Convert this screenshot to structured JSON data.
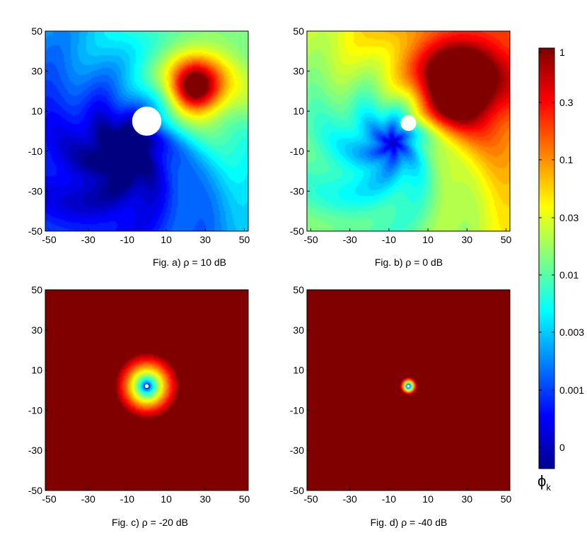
{
  "chart_data": [
    {
      "type": "heatmap",
      "caption": "Fig. a) ρ = 10 dB",
      "xticks": [
        "-50",
        "-30",
        "-10",
        "10",
        "30",
        "50"
      ],
      "yticks": [
        "50",
        "30",
        "10",
        "-10",
        "-30",
        "-50"
      ],
      "xlim": [
        -52,
        52
      ],
      "ylim": [
        -50,
        50
      ],
      "field": {
        "low_center": [
          -10,
          -10
        ],
        "high_center": [
          25,
          22
        ],
        "high_radius": 12,
        "offset": -0.22,
        "gain": 1.05,
        "ring": 6
      },
      "hole": {
        "x": 0,
        "y": 5,
        "r": 7.5
      }
    },
    {
      "type": "heatmap",
      "caption": "Fig. b)  ρ = 0 dB",
      "xticks": [
        "-50",
        "-30",
        "-10",
        "10",
        "30",
        "50"
      ],
      "yticks": [
        "50",
        "30",
        "10",
        "-10",
        "-30",
        "-50"
      ],
      "xlim": [
        -52,
        52
      ],
      "ylim": [
        -50,
        50
      ],
      "field": {
        "low_center": [
          -8,
          -6
        ],
        "high_center": [
          25,
          22
        ],
        "high_radius": 16,
        "offset": 0.05,
        "gain": 1.15,
        "ring": 6
      },
      "hole": {
        "x": 0,
        "y": 4,
        "r": 4
      }
    },
    {
      "type": "heatmap",
      "caption": "Fig. c) ρ = -20 dB",
      "xticks": [
        "-50",
        "-30",
        "-10",
        "10",
        "30",
        "50"
      ],
      "yticks": [
        "50",
        "30",
        "10",
        "-10",
        "-30",
        "-50"
      ],
      "xlim": [
        -52,
        52
      ],
      "ylim": [
        -50,
        50
      ],
      "field": {
        "mode": "radial",
        "center": [
          0,
          2
        ],
        "dip_radius": 18,
        "floor": 0.8,
        "hole": 1
      },
      "hole": {
        "x": 0,
        "y": 2,
        "r": 1
      }
    },
    {
      "type": "heatmap",
      "caption": "Fig. d) ρ = -40 dB",
      "xticks": [
        "-50",
        "-30",
        "-10",
        "10",
        "30",
        "50"
      ],
      "yticks": [
        "50",
        "30",
        "10",
        "-10",
        "-30",
        "-50"
      ],
      "xlim": [
        -52,
        52
      ],
      "ylim": [
        -50,
        50
      ],
      "field": {
        "mode": "radial",
        "center": [
          0,
          2
        ],
        "dip_radius": 5,
        "floor": 1.0,
        "hole": 0.6
      },
      "hole": {
        "x": 0,
        "y": 2,
        "r": 0.6
      }
    }
  ],
  "colorbar": {
    "label": "ϕ",
    "label_subscript": "k",
    "ticks": [
      "1",
      "0.3",
      "0.1",
      "0.03",
      "0.01",
      "0.003",
      "0.001",
      "0"
    ],
    "colormap": "jet"
  }
}
